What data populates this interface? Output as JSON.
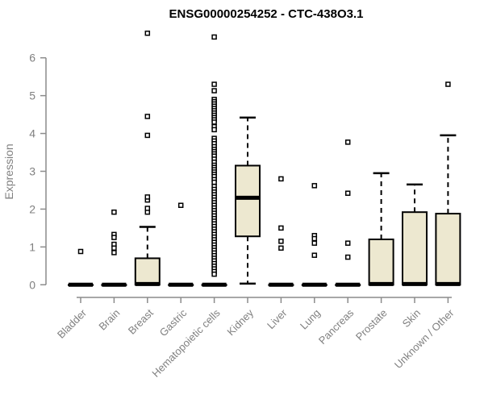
{
  "chart_data": {
    "type": "boxplot",
    "title": "ENSG00000254252 - CTC-438O3.1",
    "ylabel": "Expression",
    "xlabel": "",
    "ylim": [
      0,
      6.7
    ],
    "yticks": [
      0,
      1,
      2,
      3,
      4,
      5,
      6
    ],
    "grid": false,
    "legend": "none",
    "box_fill": "#EDE8D0",
    "box_stroke": "#000000",
    "axis_color": "#8C8C8C",
    "text_color": "#808080",
    "title_color": "#000000",
    "categories": [
      "Bladder",
      "Brain",
      "Breast",
      "Gastric",
      "Hematopoietic cells",
      "Kidney",
      "Liver",
      "Lung",
      "Pancreas",
      "Prostate",
      "Skin",
      "Unknown / Other"
    ],
    "groups": [
      {
        "label": "Bladder",
        "q1": 0,
        "median": 0,
        "q3": 0,
        "whisker_low": 0,
        "whisker_high": 0,
        "outliers": [
          0.88
        ]
      },
      {
        "label": "Brain",
        "q1": 0,
        "median": 0,
        "q3": 0,
        "whisker_low": 0,
        "whisker_high": 0,
        "outliers": [
          1.92,
          1.33,
          1.25,
          1.07,
          0.97,
          0.85
        ]
      },
      {
        "label": "Breast",
        "q1": 0,
        "median": 0.02,
        "q3": 0.7,
        "whisker_low": 0,
        "whisker_high": 1.53,
        "outliers": [
          1.92,
          2.02,
          2.24,
          2.32,
          3.95,
          4.45,
          6.65
        ]
      },
      {
        "label": "Gastric",
        "q1": 0,
        "median": 0,
        "q3": 0,
        "whisker_low": 0,
        "whisker_high": 0,
        "outliers": [
          2.1
        ]
      },
      {
        "label": "Hematopoietic cells",
        "q1": 0,
        "median": 0,
        "q3": 0,
        "whisker_low": 0,
        "whisker_high": 0,
        "outliers": [
          6.55,
          5.3,
          5.13,
          4.9,
          4.84,
          4.78,
          4.72,
          4.66,
          4.6,
          4.54,
          4.48,
          4.42,
          4.36,
          4.3,
          4.18,
          4.1,
          3.87,
          3.8,
          3.73,
          3.65,
          3.58,
          3.52,
          3.46,
          3.4,
          3.32,
          3.24,
          3.16,
          3.1,
          3.04,
          2.98,
          2.92,
          2.86,
          2.78,
          2.71,
          2.6,
          2.52,
          2.45,
          2.38,
          2.31,
          2.24,
          2.17,
          2.1,
          2.03,
          1.96,
          1.89,
          1.82,
          1.75,
          1.68,
          1.61,
          1.54,
          1.47,
          1.4,
          1.33,
          1.26,
          1.19,
          1.12,
          1.05,
          0.98,
          0.91,
          0.84,
          0.77,
          0.7,
          0.63,
          0.56,
          0.49,
          0.42,
          0.35,
          0.28
        ]
      },
      {
        "label": "Kidney",
        "q1": 1.28,
        "median": 2.3,
        "q3": 3.15,
        "whisker_low": 0.03,
        "whisker_high": 4.42,
        "outliers": []
      },
      {
        "label": "Liver",
        "q1": 0,
        "median": 0,
        "q3": 0,
        "whisker_low": 0,
        "whisker_high": 0,
        "outliers": [
          2.8,
          1.5,
          1.15,
          0.97
        ]
      },
      {
        "label": "Lung",
        "q1": 0,
        "median": 0,
        "q3": 0,
        "whisker_low": 0,
        "whisker_high": 0,
        "outliers": [
          2.62,
          1.3,
          1.22,
          1.1,
          0.78
        ]
      },
      {
        "label": "Pancreas",
        "q1": 0,
        "median": 0,
        "q3": 0,
        "whisker_low": 0,
        "whisker_high": 0,
        "outliers": [
          3.77,
          2.42,
          1.1,
          0.73
        ]
      },
      {
        "label": "Prostate",
        "q1": 0,
        "median": 0.02,
        "q3": 1.2,
        "whisker_low": 0,
        "whisker_high": 2.95,
        "outliers": []
      },
      {
        "label": "Skin",
        "q1": 0,
        "median": 0.02,
        "q3": 1.92,
        "whisker_low": 0,
        "whisker_high": 2.65,
        "outliers": []
      },
      {
        "label": "Unknown / Other",
        "q1": 0,
        "median": 0.02,
        "q3": 1.88,
        "whisker_low": 0,
        "whisker_high": 3.95,
        "outliers": [
          5.3
        ]
      }
    ]
  }
}
